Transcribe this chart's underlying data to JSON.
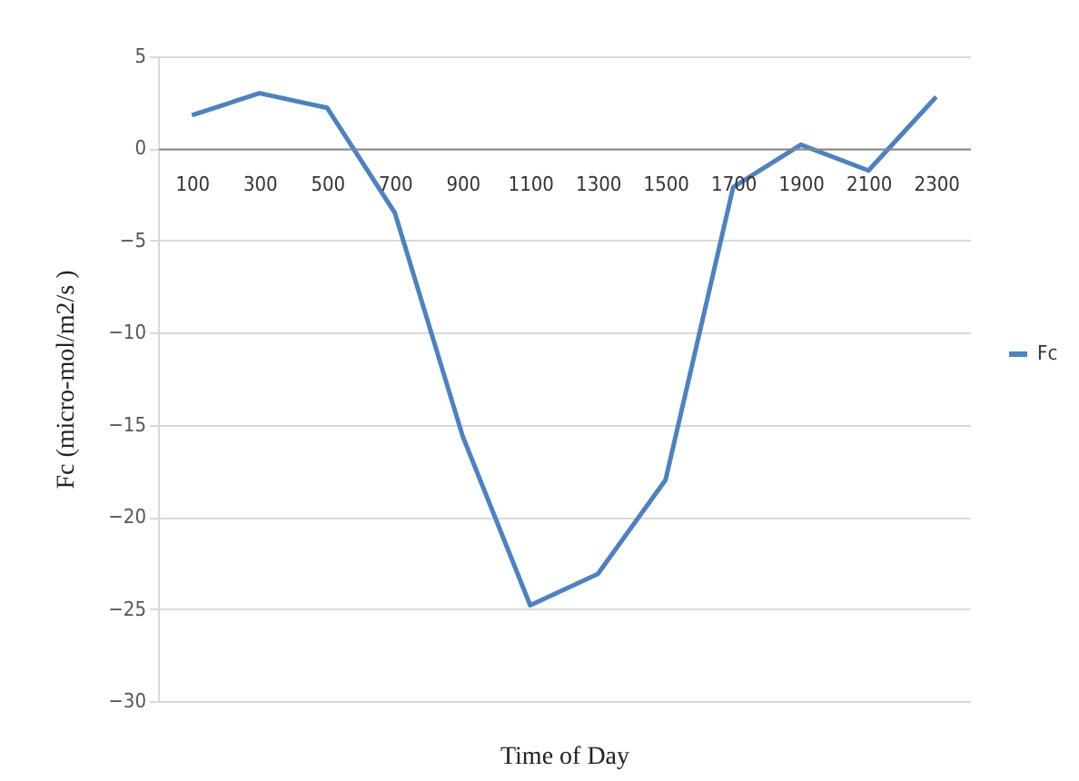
{
  "chart_data": {
    "type": "line",
    "xlabel": "Time of Day",
    "ylabel": "Fc (micro-mol/m2/s  )",
    "categories": [
      "100",
      "300",
      "500",
      "700",
      "900",
      "1100",
      "1300",
      "1500",
      "1700",
      "1900",
      "2100",
      "2300"
    ],
    "series": [
      {
        "name": "Fc",
        "color": "#4f81bd",
        "values": [
          1.8,
          3.0,
          2.2,
          -3.5,
          -15.6,
          -24.8,
          -23.1,
          -18.0,
          -2.1,
          0.2,
          -1.2,
          2.8
        ]
      }
    ],
    "ylim": [
      -30,
      5
    ],
    "yticks": [
      -30,
      -25,
      -20,
      -15,
      -10,
      -5,
      0,
      5
    ],
    "grid": "y",
    "legend": "right",
    "marker": "none"
  }
}
